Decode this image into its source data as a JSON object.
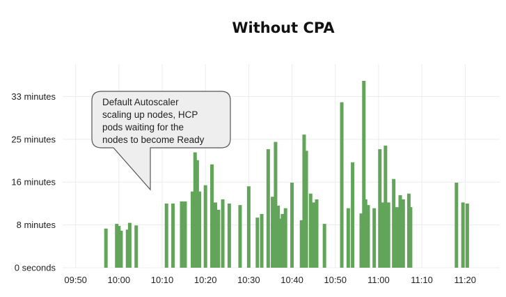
{
  "chart_data": {
    "type": "bar",
    "title": "Without CPA",
    "xlabel": "",
    "ylabel": "",
    "y_unit": "minutes",
    "ylim": [
      0,
      39
    ],
    "xlim": [
      "09:47",
      "11:28"
    ],
    "grid": true,
    "legend": "none",
    "yticks": [
      {
        "value": 0,
        "label": "0 seconds"
      },
      {
        "value": 8.2,
        "label": "8 minutes"
      },
      {
        "value": 16.4,
        "label": "16 minutes"
      },
      {
        "value": 24.6,
        "label": "25 minutes"
      },
      {
        "value": 32.8,
        "label": "33 minutes"
      }
    ],
    "xticks": [
      "09:50",
      "10:00",
      "10:10",
      "10:20",
      "10:30",
      "10:40",
      "10:50",
      "11:00",
      "11:10",
      "11:20"
    ],
    "series": [
      {
        "color": "#62a55a",
        "points": [
          {
            "t": "09:57",
            "v": 7.5
          },
          {
            "t": "09:59.5",
            "v": 8.4
          },
          {
            "t": "10:00",
            "v": 8.0
          },
          {
            "t": "10:00.5",
            "v": 7.1
          },
          {
            "t": "10:02",
            "v": 7.3
          },
          {
            "t": "10:02.5",
            "v": 8.6
          },
          {
            "t": "10:04",
            "v": 8.1
          },
          {
            "t": "10:11",
            "v": 12.3
          },
          {
            "t": "10:12.5",
            "v": 12.3
          },
          {
            "t": "10:14.5",
            "v": 12.7
          },
          {
            "t": "10:15.3",
            "v": 12.7
          },
          {
            "t": "10:17",
            "v": 14.6
          },
          {
            "t": "10:17.6",
            "v": 22.1
          },
          {
            "t": "10:18.1",
            "v": 20.6
          },
          {
            "t": "10:18.6",
            "v": 14.6
          },
          {
            "t": "10:20",
            "v": 15.8
          },
          {
            "t": "10:21.5",
            "v": 19.8
          },
          {
            "t": "10:22.3",
            "v": 12.5
          },
          {
            "t": "10:23",
            "v": 11.1
          },
          {
            "t": "10:24",
            "v": 13.1
          },
          {
            "t": "10:25.5",
            "v": 12.3
          },
          {
            "t": "10:28",
            "v": 12.0
          },
          {
            "t": "10:30",
            "v": 15.6
          },
          {
            "t": "10:32",
            "v": 9.6
          },
          {
            "t": "10:33",
            "v": 10.3
          },
          {
            "t": "10:34.5",
            "v": 22.7
          },
          {
            "t": "10:35.5",
            "v": 13.6
          },
          {
            "t": "10:36.2",
            "v": 24.1
          },
          {
            "t": "10:36.8",
            "v": 11.9
          },
          {
            "t": "10:37.3",
            "v": 9.4
          },
          {
            "t": "10:37.8",
            "v": 10.3
          },
          {
            "t": "10:38.5",
            "v": 11.4
          },
          {
            "t": "10:40",
            "v": 16.3
          },
          {
            "t": "10:42.2",
            "v": 9.1
          },
          {
            "t": "10:42.8",
            "v": 25.5
          },
          {
            "t": "10:43.3",
            "v": 22.4
          },
          {
            "t": "10:44.3",
            "v": 14.2
          },
          {
            "t": "10:45",
            "v": 12.5
          },
          {
            "t": "10:45.7",
            "v": 13.1
          },
          {
            "t": "10:47.5",
            "v": 8.4
          },
          {
            "t": "10:51.5",
            "v": 31.7
          },
          {
            "t": "10:53",
            "v": 11.4
          },
          {
            "t": "10:54",
            "v": 20.2
          },
          {
            "t": "10:56",
            "v": 10.4
          },
          {
            "t": "10:56.6",
            "v": 35.8
          },
          {
            "t": "10:57",
            "v": 13.1
          },
          {
            "t": "10:57.6",
            "v": 12.0
          },
          {
            "t": "10:59",
            "v": 11.4
          },
          {
            "t": "11:00.3",
            "v": 22.7
          },
          {
            "t": "11:01",
            "v": 12.5
          },
          {
            "t": "11:01.6",
            "v": 23.4
          },
          {
            "t": "11:02.3",
            "v": 12.5
          },
          {
            "t": "11:03.5",
            "v": 17.0
          },
          {
            "t": "11:04.2",
            "v": 11.6
          },
          {
            "t": "11:05",
            "v": 13.9
          },
          {
            "t": "11:05.7",
            "v": 13.1
          },
          {
            "t": "11:07",
            "v": 14.2
          },
          {
            "t": "11:07.4",
            "v": 11.6
          },
          {
            "t": "11:18",
            "v": 16.3
          },
          {
            "t": "11:19.5",
            "v": 12.5
          },
          {
            "t": "11:20.5",
            "v": 12.3
          }
        ]
      }
    ],
    "annotation": {
      "lines": [
        "Default Autoscaler",
        "scaling up nodes, HCP",
        "pods waiting for the",
        "nodes to become Ready"
      ]
    }
  }
}
